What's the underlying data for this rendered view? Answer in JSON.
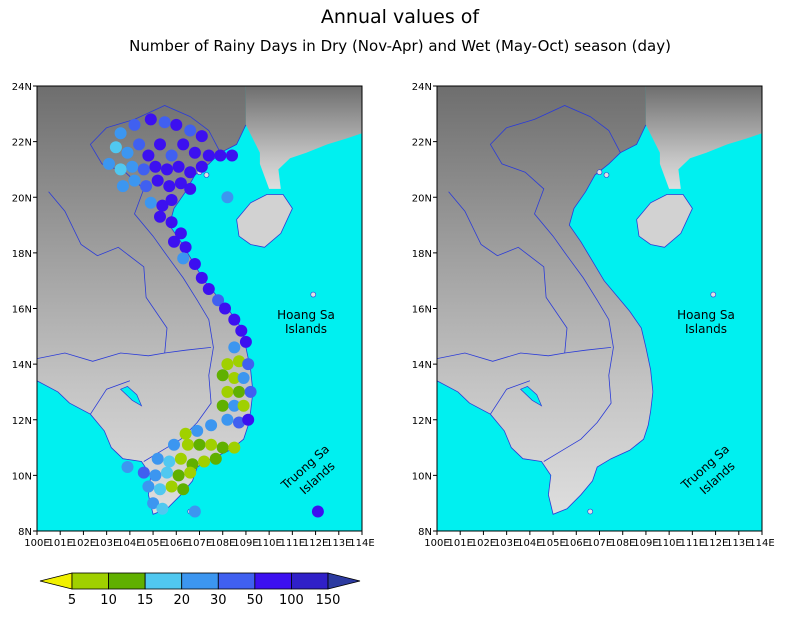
{
  "title": {
    "line1": "Annual values of",
    "line2": "Number of Rainy Days in Dry (Nov-Apr) and Wet (May-Oct) season (day)"
  },
  "colors": {
    "sea": "#00f0f0",
    "border": "#2b3bd8",
    "land_dark": "#6a6a6a",
    "land_mid": "#a6a6a6",
    "land_light": "#d2d2d2"
  },
  "islands": {
    "hoang_sa": [
      "Hoang Sa",
      "Islands"
    ],
    "truong_sa": [
      "Truong Sa",
      "Islands"
    ]
  },
  "axes": {
    "lon_labels": [
      "100E",
      "101E",
      "102E",
      "103E",
      "104E",
      "105E",
      "106E",
      "107E",
      "108E",
      "109E",
      "110E",
      "111E",
      "112E",
      "113E",
      "114E"
    ],
    "lat_labels": [
      "8N",
      "10N",
      "12N",
      "14N",
      "16N",
      "18N",
      "20N",
      "22N",
      "24N"
    ],
    "lon_range": [
      100,
      114
    ],
    "lat_range": [
      8,
      24
    ]
  },
  "colorbar": {
    "labels": [
      "5",
      "10",
      "15",
      "20",
      "30",
      "50",
      "100",
      "150"
    ],
    "colors": [
      "#f0f000",
      "#a0d000",
      "#60b000",
      "#50c8f0",
      "#3c96f0",
      "#4060f0",
      "#3c10f0",
      "#3020c8",
      "#2c3aa0"
    ]
  },
  "chart_data": [
    {
      "type": "scatter",
      "panel": "left",
      "points": [
        [
          103.6,
          22.3,
          "#3c96f0"
        ],
        [
          104.2,
          22.6,
          "#4060f0"
        ],
        [
          104.9,
          22.8,
          "#3c10f0"
        ],
        [
          105.5,
          22.7,
          "#4060f0"
        ],
        [
          106.0,
          22.6,
          "#3c10f0"
        ],
        [
          106.6,
          22.4,
          "#4060f0"
        ],
        [
          107.1,
          22.2,
          "#3c10f0"
        ],
        [
          103.4,
          21.8,
          "#50c8f0"
        ],
        [
          103.9,
          21.6,
          "#3c96f0"
        ],
        [
          104.4,
          21.9,
          "#4060f0"
        ],
        [
          104.8,
          21.5,
          "#3c10f0"
        ],
        [
          105.3,
          21.9,
          "#3c10f0"
        ],
        [
          105.8,
          21.5,
          "#4060f0"
        ],
        [
          106.3,
          21.9,
          "#3c10f0"
        ],
        [
          106.8,
          21.6,
          "#3c10f0"
        ],
        [
          107.4,
          21.5,
          "#3c10f0"
        ],
        [
          107.9,
          21.5,
          "#3c10f0"
        ],
        [
          108.4,
          21.5,
          "#3c10f0"
        ],
        [
          103.1,
          21.2,
          "#3c96f0"
        ],
        [
          103.6,
          21.0,
          "#50c8f0"
        ],
        [
          104.1,
          21.1,
          "#3c96f0"
        ],
        [
          104.6,
          21.0,
          "#4060f0"
        ],
        [
          105.1,
          21.1,
          "#3c10f0"
        ],
        [
          105.6,
          21.0,
          "#3c10f0"
        ],
        [
          106.1,
          21.1,
          "#3c10f0"
        ],
        [
          106.6,
          20.9,
          "#3c10f0"
        ],
        [
          107.1,
          21.1,
          "#3c10f0"
        ],
        [
          103.7,
          20.4,
          "#3c96f0"
        ],
        [
          104.2,
          20.6,
          "#3c96f0"
        ],
        [
          104.7,
          20.4,
          "#4060f0"
        ],
        [
          105.2,
          20.6,
          "#3c10f0"
        ],
        [
          105.7,
          20.4,
          "#3c10f0"
        ],
        [
          106.2,
          20.5,
          "#3c10f0"
        ],
        [
          106.6,
          20.3,
          "#3c10f0"
        ],
        [
          108.2,
          20.0,
          "#3c96f0"
        ],
        [
          104.9,
          19.8,
          "#3c96f0"
        ],
        [
          105.4,
          19.7,
          "#3c10f0"
        ],
        [
          105.8,
          19.9,
          "#3c10f0"
        ],
        [
          105.3,
          19.3,
          "#3c10f0"
        ],
        [
          105.8,
          19.1,
          "#3c10f0"
        ],
        [
          106.2,
          18.7,
          "#3c10f0"
        ],
        [
          105.9,
          18.4,
          "#3c10f0"
        ],
        [
          106.4,
          18.2,
          "#3c10f0"
        ],
        [
          106.3,
          17.8,
          "#3c96f0"
        ],
        [
          106.8,
          17.6,
          "#3c10f0"
        ],
        [
          107.1,
          17.1,
          "#3c10f0"
        ],
        [
          107.4,
          16.7,
          "#3c10f0"
        ],
        [
          107.8,
          16.3,
          "#4060f0"
        ],
        [
          108.1,
          16.0,
          "#3c10f0"
        ],
        [
          108.5,
          15.6,
          "#3c10f0"
        ],
        [
          108.8,
          15.2,
          "#3c10f0"
        ],
        [
          109.0,
          14.8,
          "#3c10f0"
        ],
        [
          108.5,
          14.6,
          "#3c96f0"
        ],
        [
          108.2,
          14.0,
          "#a0d000"
        ],
        [
          108.7,
          14.1,
          "#a0d000"
        ],
        [
          109.1,
          14.0,
          "#4060f0"
        ],
        [
          108.0,
          13.6,
          "#60b000"
        ],
        [
          108.5,
          13.5,
          "#a0d000"
        ],
        [
          108.9,
          13.5,
          "#3c96f0"
        ],
        [
          108.2,
          13.0,
          "#a0d000"
        ],
        [
          108.7,
          13.0,
          "#60b000"
        ],
        [
          109.2,
          13.0,
          "#4060f0"
        ],
        [
          108.0,
          12.5,
          "#60b000"
        ],
        [
          108.5,
          12.5,
          "#3c96f0"
        ],
        [
          108.9,
          12.5,
          "#a0d000"
        ],
        [
          108.2,
          12.0,
          "#3c96f0"
        ],
        [
          108.7,
          11.9,
          "#4060f0"
        ],
        [
          109.1,
          12.0,
          "#3c10f0"
        ],
        [
          107.5,
          11.8,
          "#3c96f0"
        ],
        [
          106.9,
          11.6,
          "#3c96f0"
        ],
        [
          106.4,
          11.5,
          "#a0d000"
        ],
        [
          105.9,
          11.1,
          "#3c96f0"
        ],
        [
          106.5,
          11.1,
          "#a0d000"
        ],
        [
          107.0,
          11.1,
          "#60b000"
        ],
        [
          107.5,
          11.1,
          "#a0d000"
        ],
        [
          108.0,
          11.0,
          "#60b000"
        ],
        [
          108.5,
          11.0,
          "#a0d000"
        ],
        [
          105.2,
          10.6,
          "#3c96f0"
        ],
        [
          105.7,
          10.5,
          "#50c8f0"
        ],
        [
          106.2,
          10.6,
          "#a0d000"
        ],
        [
          106.7,
          10.4,
          "#60b000"
        ],
        [
          107.2,
          10.5,
          "#a0d000"
        ],
        [
          107.7,
          10.6,
          "#60b000"
        ],
        [
          104.6,
          10.1,
          "#4060f0"
        ],
        [
          105.1,
          10.0,
          "#3c96f0"
        ],
        [
          105.6,
          10.1,
          "#50c8f0"
        ],
        [
          106.1,
          10.0,
          "#60b000"
        ],
        [
          106.6,
          10.1,
          "#a0d000"
        ],
        [
          103.9,
          10.3,
          "#3c96f0"
        ],
        [
          104.8,
          9.6,
          "#3c96f0"
        ],
        [
          105.3,
          9.5,
          "#50c8f0"
        ],
        [
          105.8,
          9.6,
          "#a0d000"
        ],
        [
          106.3,
          9.5,
          "#60b000"
        ],
        [
          105.0,
          9.0,
          "#3c96f0"
        ],
        [
          105.4,
          8.8,
          "#50c8f0"
        ],
        [
          106.8,
          8.7,
          "#3c96f0"
        ],
        [
          112.1,
          8.7,
          "#3c10f0"
        ]
      ]
    }
  ]
}
